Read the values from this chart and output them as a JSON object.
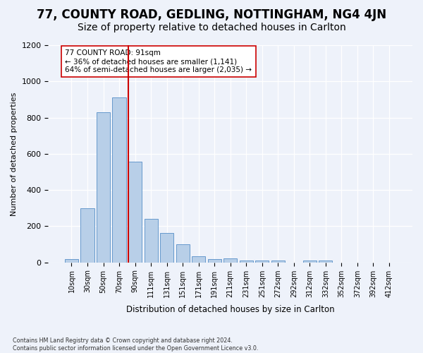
{
  "title1": "77, COUNTY ROAD, GEDLING, NOTTINGHAM, NG4 4JN",
  "title2": "Size of property relative to detached houses in Carlton",
  "xlabel": "Distribution of detached houses by size in Carlton",
  "ylabel": "Number of detached properties",
  "footnote": "Contains HM Land Registry data © Crown copyright and database right 2024.\nContains public sector information licensed under the Open Government Licence v3.0.",
  "bin_labels": [
    "10sqm",
    "30sqm",
    "50sqm",
    "70sqm",
    "90sqm",
    "111sqm",
    "131sqm",
    "151sqm",
    "171sqm",
    "191sqm",
    "211sqm",
    "231sqm",
    "251sqm",
    "272sqm",
    "292sqm",
    "312sqm",
    "332sqm",
    "352sqm",
    "372sqm",
    "392sqm",
    "412sqm"
  ],
  "bar_values": [
    20,
    300,
    830,
    910,
    555,
    240,
    163,
    100,
    35,
    20,
    22,
    12,
    10,
    10,
    0,
    10,
    10,
    0,
    0,
    0,
    0
  ],
  "bar_color": "#b8cfe8",
  "bar_edge_color": "#6699cc",
  "highlight_bin": 4,
  "highlight_color": "#cc0000",
  "annotation_text": "77 COUNTY ROAD: 91sqm\n← 36% of detached houses are smaller (1,141)\n64% of semi-detached houses are larger (2,035) →",
  "ylim": [
    0,
    1200
  ],
  "yticks": [
    0,
    200,
    400,
    600,
    800,
    1000,
    1200
  ],
  "background_color": "#eef2fa",
  "title1_fontsize": 12,
  "title2_fontsize": 10
}
